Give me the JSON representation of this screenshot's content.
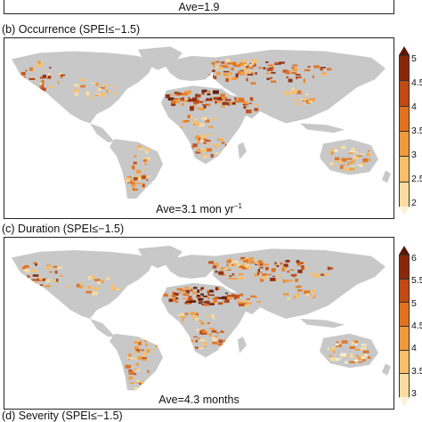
{
  "colors": {
    "land": "#c8c8c8",
    "scale": [
      "#fdf1d6",
      "#fbdca0",
      "#f8bf6a",
      "#f19a3c",
      "#e0721f",
      "#bf4a12",
      "#8a270b",
      "#5a1606"
    ]
  },
  "top_partial": {
    "ave_text": "Ave=1.9"
  },
  "panels": [
    {
      "title": "(b) Occurrence (SPEI≤−1.5)",
      "ave_prefix": "Ave=3.1 mon yr",
      "ave_sup": "−1",
      "ticks": [
        "5",
        "4.5",
        "4",
        "3.5",
        "3",
        "2.5",
        "2"
      ]
    },
    {
      "title": "(c) Duration (SPEI≤−1.5)",
      "ave_prefix": "Ave=4.3 months",
      "ave_sup": "",
      "ticks": [
        "6",
        "5.5",
        "5",
        "4.5",
        "4",
        "3.5",
        "3"
      ]
    }
  ],
  "bottom_partial": {
    "title": "(d) Severity (SPEI≤−1.5)"
  }
}
